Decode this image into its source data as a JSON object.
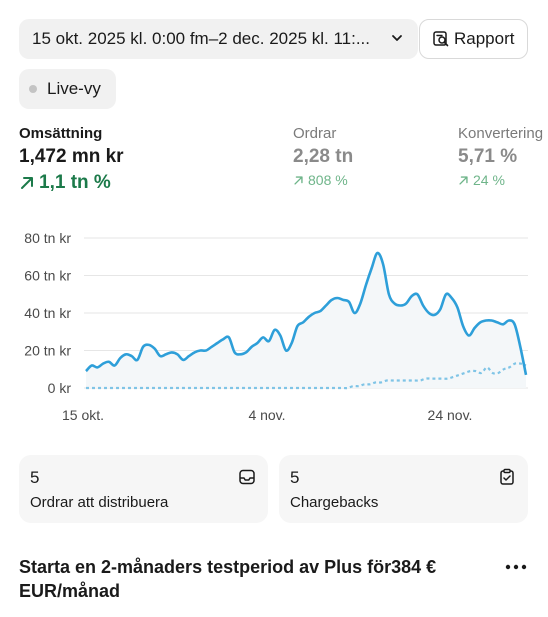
{
  "date_range": {
    "label": "15 okt. 2025 kl. 0:00 fm–2 dec. 2025 kl. 11:...",
    "icon": "chevron-down-icon"
  },
  "report_button": {
    "label": "Rapport",
    "icon": "report-search-icon"
  },
  "live_view": {
    "label": "Live-vy"
  },
  "metrics": [
    {
      "label": "Omsättning",
      "value": "1,472 mn kr",
      "change": "1,1 tn %"
    },
    {
      "label": "Ordrar",
      "value": "2,28 tn",
      "change": "808 %"
    },
    {
      "label": "Konvertering",
      "value": "5,71 %",
      "change": "24 %"
    }
  ],
  "chart_data": {
    "type": "line",
    "y_tick_labels": [
      "80 tn kr",
      "60 tn kr",
      "40 tn kr",
      "20 tn kr",
      "0 kr"
    ],
    "x_tick_labels": [
      "15 okt.",
      "4 nov.",
      "24 nov."
    ],
    "ylim": [
      0,
      80
    ],
    "grid": true,
    "colors": {
      "current": "#2e9fd9",
      "comparison": "#7fc4e6"
    },
    "series": [
      {
        "style": "solid",
        "values": [
          9,
          12,
          11,
          13,
          14,
          12,
          16,
          18,
          17,
          15,
          22,
          23,
          21,
          17,
          18,
          19,
          18,
          15,
          17,
          19,
          20,
          20,
          22,
          24,
          26,
          27,
          19,
          18,
          19,
          22,
          24,
          27,
          25,
          31,
          28,
          20,
          24,
          33,
          35,
          38,
          40,
          41,
          44,
          47,
          48,
          47,
          46,
          40,
          45,
          55,
          64,
          72,
          66,
          50,
          45,
          44,
          45,
          49,
          50,
          44,
          40,
          39,
          42,
          50,
          48,
          43,
          33,
          28,
          32,
          35,
          36,
          36,
          35,
          34,
          36,
          34,
          22,
          7
        ]
      },
      {
        "style": "dashed",
        "values": [
          0,
          0,
          0,
          0,
          0,
          0,
          0,
          0,
          0,
          0,
          0,
          0,
          0,
          0,
          0,
          0,
          0,
          0,
          0,
          0,
          0,
          0,
          0,
          0,
          0,
          0,
          0,
          0,
          0,
          0,
          0,
          0,
          0,
          0,
          0,
          0,
          0,
          0,
          0,
          0,
          0,
          0,
          0,
          0,
          0,
          0,
          0,
          0,
          1,
          1,
          2,
          2,
          3,
          3,
          4,
          4,
          4,
          4,
          4,
          4,
          4,
          5,
          5,
          5,
          5,
          5,
          6,
          7,
          8,
          9,
          9,
          8,
          11,
          8,
          8,
          10,
          11,
          13,
          13,
          12
        ]
      }
    ]
  },
  "cards": [
    {
      "number": "5",
      "label": "Ordrar att distribuera",
      "icon": "inbox-icon"
    },
    {
      "number": "5",
      "label": "Chargebacks",
      "icon": "clipboard-check-icon"
    }
  ],
  "promo": {
    "text": "Starta en 2-månaders testperiod av Plus för384 € EUR/månad"
  }
}
